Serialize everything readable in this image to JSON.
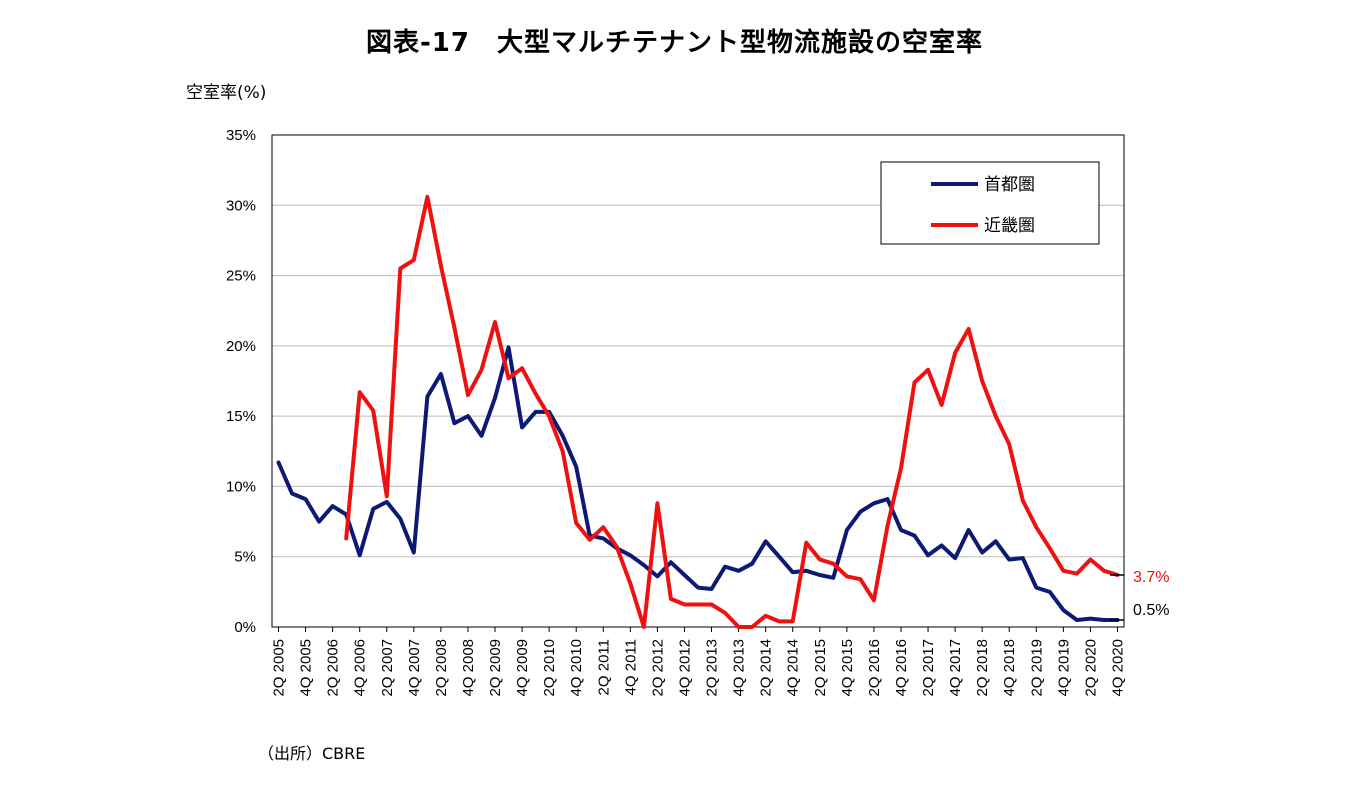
{
  "title": "図表-17　大型マルチテナント型物流施設の空室率",
  "source": "（出所）CBRE",
  "chart_data": {
    "type": "line",
    "title": "図表-17　大型マルチテナント型物流施設の空室率",
    "ylabel": "空室率(%)",
    "xlabel": "",
    "ylim": [
      0,
      35
    ],
    "yticks": [
      0,
      5,
      10,
      15,
      20,
      25,
      30,
      35
    ],
    "ytick_labels": [
      "0%",
      "5%",
      "10%",
      "15%",
      "20%",
      "25%",
      "30%",
      "35%"
    ],
    "grid": true,
    "legend_position": "top-right",
    "categories": [
      "2Q 2005",
      "3Q 2005",
      "4Q 2005",
      "1Q 2006",
      "2Q 2006",
      "3Q 2006",
      "4Q 2006",
      "1Q 2007",
      "2Q 2007",
      "3Q 2007",
      "4Q 2007",
      "1Q 2008",
      "2Q 2008",
      "3Q 2008",
      "4Q 2008",
      "1Q 2009",
      "2Q 2009",
      "3Q 2009",
      "4Q 2009",
      "1Q 2010",
      "2Q 2010",
      "3Q 2010",
      "4Q 2010",
      "1Q 2011",
      "2Q 2011",
      "3Q 2011",
      "4Q 2011",
      "1Q 2012",
      "2Q 2012",
      "3Q 2012",
      "4Q 2012",
      "1Q 2013",
      "2Q 2013",
      "3Q 2013",
      "4Q 2013",
      "1Q 2014",
      "2Q 2014",
      "3Q 2014",
      "4Q 2014",
      "1Q 2015",
      "2Q 2015",
      "3Q 2015",
      "4Q 2015",
      "1Q 2016",
      "2Q 2016",
      "3Q 2016",
      "4Q 2016",
      "1Q 2017",
      "2Q 2017",
      "3Q 2017",
      "4Q 2017",
      "1Q 2018",
      "2Q 2018",
      "3Q 2018",
      "4Q 2018",
      "1Q 2019",
      "2Q 2019",
      "3Q 2019",
      "4Q 2019",
      "1Q 2020",
      "2Q 2020",
      "3Q 2020",
      "4Q 2020"
    ],
    "tick_labels": [
      "2Q 2005",
      "4Q 2005",
      "2Q 2006",
      "4Q 2006",
      "2Q 2007",
      "4Q 2007",
      "2Q 2008",
      "4Q 2008",
      "2Q 2009",
      "4Q 2009",
      "2Q 2010",
      "4Q 2010",
      "2Q 2011",
      "4Q 2011",
      "2Q 2012",
      "4Q 2012",
      "2Q 2013",
      "4Q 2013",
      "2Q 2014",
      "4Q 2014",
      "2Q 2015",
      "4Q 2015",
      "2Q 2016",
      "4Q 2016",
      "2Q 2017",
      "4Q 2017",
      "2Q 2018",
      "4Q 2018",
      "2Q 2019",
      "4Q 2019",
      "2Q 2020",
      "4Q 2020"
    ],
    "series": [
      {
        "name": "首都圏",
        "color": "#0d1a73",
        "end_label": "0.5%",
        "values": [
          11.7,
          9.5,
          9.1,
          7.5,
          8.6,
          8.0,
          5.1,
          8.4,
          8.9,
          7.7,
          5.3,
          16.4,
          18.0,
          14.5,
          15.0,
          13.6,
          16.3,
          19.9,
          14.2,
          15.3,
          15.3,
          13.6,
          11.4,
          6.5,
          6.3,
          5.6,
          5.1,
          4.4,
          3.6,
          4.6,
          3.7,
          2.8,
          2.7,
          4.3,
          4.0,
          4.5,
          6.1,
          5.0,
          3.9,
          4.0,
          3.7,
          3.5,
          6.9,
          8.2,
          8.8,
          9.1,
          6.9,
          6.5,
          5.1,
          5.8,
          4.9,
          6.9,
          5.3,
          6.1,
          4.8,
          4.9,
          2.8,
          2.5,
          1.2,
          0.5,
          0.6,
          0.5,
          0.5
        ]
      },
      {
        "name": "近畿圏",
        "color": "#ee1111",
        "end_label": "3.7%",
        "values": [
          null,
          null,
          null,
          null,
          null,
          6.3,
          16.7,
          15.4,
          9.3,
          25.5,
          26.1,
          30.6,
          25.7,
          21.3,
          16.5,
          18.3,
          21.7,
          17.7,
          18.4,
          16.6,
          15.0,
          12.5,
          7.4,
          6.2,
          7.1,
          5.7,
          3.1,
          0.0,
          8.8,
          2.0,
          1.6,
          1.6,
          1.6,
          1.0,
          0.0,
          0.0,
          0.8,
          0.4,
          0.4,
          6.0,
          4.8,
          4.5,
          3.6,
          3.4,
          1.9,
          7.2,
          11.3,
          17.4,
          18.3,
          15.8,
          19.5,
          21.2,
          17.5,
          15.0,
          13.0,
          9.0,
          7.1,
          5.6,
          4.0,
          3.8,
          4.8,
          4.0,
          3.7
        ]
      }
    ]
  }
}
